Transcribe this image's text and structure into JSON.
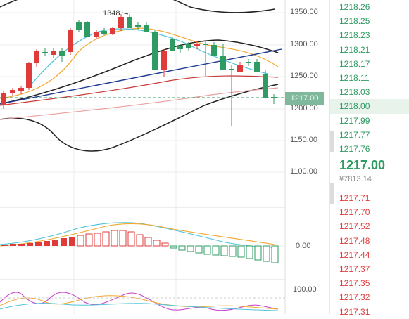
{
  "y_axis": {
    "price_ticks": [
      "1350.00",
      "1300.00",
      "1250.00",
      "1200.00",
      "1150.00",
      "1100.00"
    ],
    "macd_zero": "0.00",
    "kdj_top": "100.00"
  },
  "annotation": {
    "high_marker": "1348"
  },
  "current_price_tag": "1217.00",
  "side_panel": {
    "asks": [
      "1218.26",
      "1218.25",
      "1218.23",
      "1218.21",
      "1218.17",
      "1218.11",
      "1218.03",
      "1218.00",
      "1217.99",
      "1217.77",
      "1217.76"
    ],
    "highlighted_ask": "1218.00",
    "last_price": "1217.00",
    "last_price_cny": "¥7813.14",
    "bids": [
      "1217.71",
      "1217.70",
      "1217.52",
      "1217.48",
      "1217.44",
      "1217.37",
      "1217.35",
      "1217.32",
      "1217.31"
    ]
  },
  "colors": {
    "up": "#e03b3b",
    "down": "#2e9b62",
    "ma_yellow": "#f0a830",
    "ma_cyan": "#4fc3d9",
    "bollinger": "#222222",
    "trendline": "#1f3a93"
  }
}
